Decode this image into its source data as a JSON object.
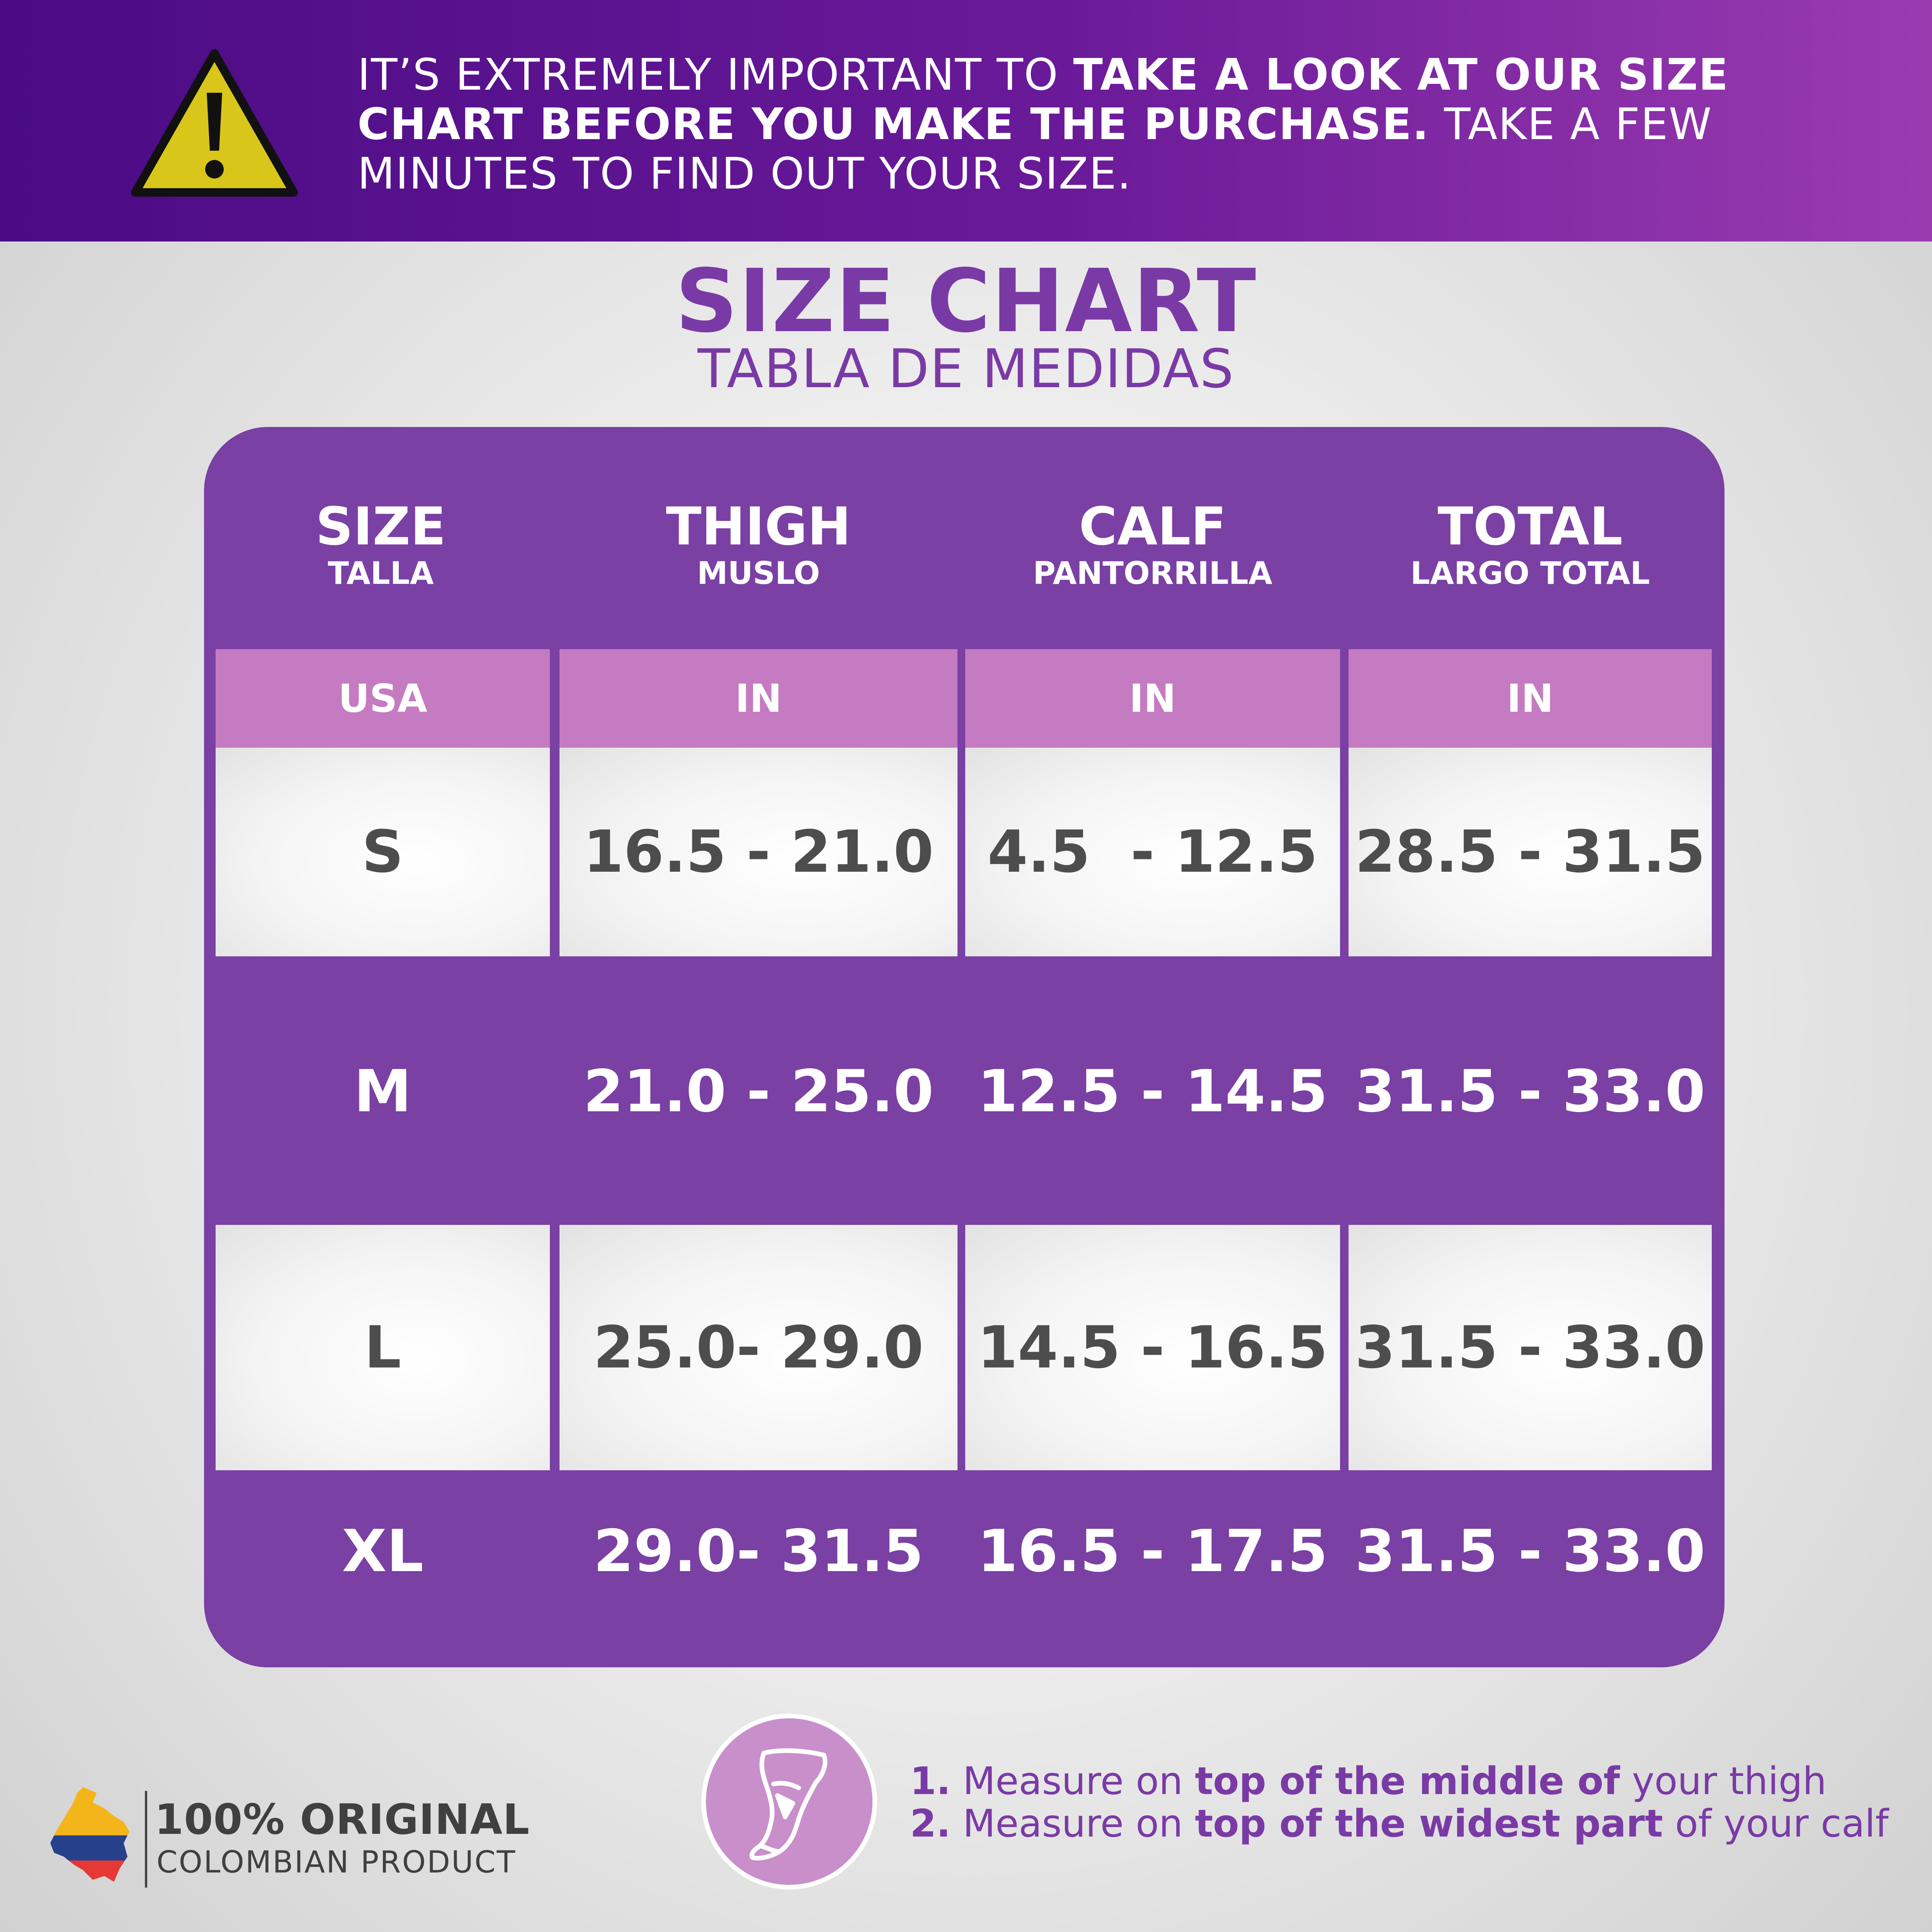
{
  "banner": {
    "part1": "IT’S EXTREMELY IMPORTANT TO ",
    "part2_bold": "TAKE A LOOK AT OUR SIZE CHART BEFORE YOU MAKE THE PURCHASE.",
    "part3": " TAKE A FEW MINUTES TO FIND OUT YOUR SIZE.",
    "icon": "warning-triangle-icon"
  },
  "title": "SIZE CHART",
  "subtitle": "TABLA DE MEDIDAS",
  "table": {
    "columns": [
      {
        "en": "SIZE",
        "es": "TALLA",
        "unit": "USA"
      },
      {
        "en": "THIGH",
        "es": "MUSLO",
        "unit": "IN"
      },
      {
        "en": "CALF",
        "es": "PANTORRILLA",
        "unit": "IN"
      },
      {
        "en": "TOTAL",
        "es": "LARGO TOTAL",
        "unit": "IN"
      }
    ],
    "rows": [
      {
        "size": "S",
        "thigh": "16.5 - 21.0",
        "calf": "4.5  - 12.5",
        "total": "28.5 - 31.5"
      },
      {
        "size": "M",
        "thigh": "21.0 - 25.0",
        "calf": "12.5 - 14.5",
        "total": "31.5 - 33.0"
      },
      {
        "size": "L",
        "thigh": "25.0- 29.0",
        "calf": "14.5 - 16.5",
        "total": "31.5 - 33.0"
      },
      {
        "size": "XL",
        "thigh": "29.0- 31.5",
        "calf": "16.5 - 17.5",
        "total": "31.5 - 33.0"
      }
    ]
  },
  "footer": {
    "original_line1": "100% ORIGINAL",
    "original_line2": "COLOMBIAN PRODUCT",
    "map_icon": "colombia-flag-map-icon",
    "measure_icon": "leg-measure-icon",
    "instructions": [
      {
        "num": "1.",
        "pre": " Measure on ",
        "bold": "top of the middle of",
        "post": " your thigh"
      },
      {
        "num": "2.",
        "pre": " Measure on ",
        "bold": "top of the widest part",
        "post": " of your calf"
      }
    ]
  },
  "colors": {
    "banner_start": "#4a0b84",
    "banner_end": "#9a3bb0",
    "purple": "#7a40a4",
    "unit_row": "#c47bc1",
    "title": "#7a3aa6",
    "warning_yellow": "#d8c71a"
  }
}
